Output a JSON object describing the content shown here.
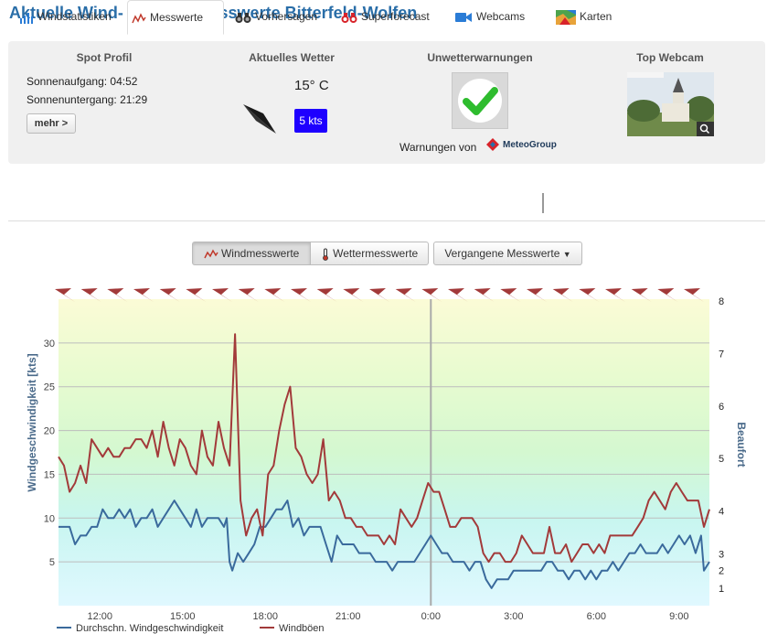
{
  "page": {
    "title": "Aktuelle Wind- & Wettermesswerte Bitterfeld-Wolfen"
  },
  "spot_profile": {
    "heading": "Spot Profil",
    "sunrise": "Sonnenaufgang: 04:52",
    "sunset": "Sonnenuntergang: 21:29",
    "more_label": "mehr >"
  },
  "current_weather": {
    "heading": "Aktuelles Wetter",
    "temperature": "15° C",
    "wind_speed": "5 kts",
    "wind_arrow_icon": "wind-direction-arrow-icon"
  },
  "warnings": {
    "heading": "Unwetterwarnungen",
    "status_icon": "checkmark-icon",
    "provider_text": "Warnungen von",
    "provider_name": "MeteoGroup"
  },
  "webcam": {
    "heading": "Top Webcam",
    "zoom_icon": "magnifier-icon"
  },
  "tabs": [
    {
      "label": "Windstatistiken",
      "icon": "bar-chart-icon"
    },
    {
      "label": "Messwerte",
      "icon": "line-chart-icon"
    },
    {
      "label": "Vorhersagen",
      "icon": "binoculars-icon"
    },
    {
      "label": "Superforecast",
      "icon": "superforecast-icon"
    },
    {
      "label": "Webcams",
      "icon": "camera-icon"
    },
    {
      "label": "Karten",
      "icon": "map-icon"
    }
  ],
  "buttons": {
    "wind": "Windmesswerte",
    "weather": "Wettermesswerte",
    "past": "Vergangene Messwerte"
  },
  "colors": {
    "avg": "#3a6a9c",
    "gust": "#a23a3a",
    "speed_badge": "#1e00ff",
    "title": "#2a6ea8",
    "arrow": "#a23a3a"
  },
  "chart_data": {
    "type": "line",
    "ylabel": "Windgeschwindigkeit [kts]",
    "y2label": "Beaufort",
    "ylim": [
      0,
      35
    ],
    "yticks": [
      5,
      10,
      15,
      20,
      25,
      30
    ],
    "beaufort_ticks": [
      {
        "label": "1",
        "kts": 2
      },
      {
        "label": "2",
        "kts": 4
      },
      {
        "label": "3",
        "kts": 5.9
      },
      {
        "label": "4",
        "kts": 10.8
      },
      {
        "label": "5",
        "kts": 16.8
      },
      {
        "label": "6",
        "kts": 22.8
      },
      {
        "label": "7",
        "kts": 28.8
      },
      {
        "label": "8",
        "kts": 34.8
      }
    ],
    "xlim": [
      10.5,
      34.1
    ],
    "xticks": [
      {
        "label": "12:00",
        "t": 12
      },
      {
        "label": "15:00",
        "t": 15
      },
      {
        "label": "18:00",
        "t": 18
      },
      {
        "label": "21:00",
        "t": 21
      },
      {
        "label": "0:00",
        "t": 24
      },
      {
        "label": "3:00",
        "t": 27
      },
      {
        "label": "6:00",
        "t": 30
      },
      {
        "label": "9:00",
        "t": 33
      }
    ],
    "midnight_line": 24,
    "direction_arrows_count": 25,
    "series": [
      {
        "name": "Durchschn. Windgeschwindigkeit",
        "color": "#3a6a9c",
        "points": [
          [
            10.5,
            9
          ],
          [
            10.7,
            9
          ],
          [
            10.9,
            9
          ],
          [
            11.1,
            7
          ],
          [
            11.3,
            8
          ],
          [
            11.5,
            8
          ],
          [
            11.7,
            9
          ],
          [
            11.9,
            9
          ],
          [
            12.1,
            11
          ],
          [
            12.3,
            10
          ],
          [
            12.5,
            10
          ],
          [
            12.7,
            11
          ],
          [
            12.9,
            10
          ],
          [
            13.1,
            11
          ],
          [
            13.3,
            9
          ],
          [
            13.5,
            10
          ],
          [
            13.7,
            10
          ],
          [
            13.9,
            11
          ],
          [
            14.1,
            9
          ],
          [
            14.3,
            10
          ],
          [
            14.5,
            11
          ],
          [
            14.7,
            12
          ],
          [
            14.9,
            11
          ],
          [
            15.1,
            10
          ],
          [
            15.3,
            9
          ],
          [
            15.5,
            11
          ],
          [
            15.7,
            9
          ],
          [
            15.9,
            10
          ],
          [
            16.1,
            10
          ],
          [
            16.3,
            10
          ],
          [
            16.5,
            9
          ],
          [
            16.6,
            10
          ],
          [
            16.7,
            5
          ],
          [
            16.8,
            4
          ],
          [
            17.0,
            6
          ],
          [
            17.2,
            5
          ],
          [
            17.4,
            6
          ],
          [
            17.6,
            7
          ],
          [
            17.8,
            9
          ],
          [
            18.0,
            9
          ],
          [
            18.2,
            10
          ],
          [
            18.4,
            11
          ],
          [
            18.6,
            11
          ],
          [
            18.8,
            12
          ],
          [
            19.0,
            9
          ],
          [
            19.2,
            10
          ],
          [
            19.4,
            8
          ],
          [
            19.6,
            9
          ],
          [
            19.8,
            9
          ],
          [
            20.0,
            9
          ],
          [
            20.2,
            7
          ],
          [
            20.4,
            5
          ],
          [
            20.6,
            8
          ],
          [
            20.8,
            7
          ],
          [
            21.0,
            7
          ],
          [
            21.2,
            7
          ],
          [
            21.4,
            6
          ],
          [
            21.6,
            6
          ],
          [
            21.8,
            6
          ],
          [
            22.0,
            5
          ],
          [
            22.2,
            5
          ],
          [
            22.4,
            5
          ],
          [
            22.6,
            4
          ],
          [
            22.8,
            5
          ],
          [
            23.0,
            5
          ],
          [
            23.2,
            5
          ],
          [
            23.4,
            5
          ],
          [
            23.6,
            6
          ],
          [
            23.8,
            7
          ],
          [
            24.0,
            8
          ],
          [
            24.2,
            7
          ],
          [
            24.4,
            6
          ],
          [
            24.6,
            6
          ],
          [
            24.8,
            5
          ],
          [
            25.0,
            5
          ],
          [
            25.2,
            5
          ],
          [
            25.4,
            4
          ],
          [
            25.6,
            5
          ],
          [
            25.8,
            5
          ],
          [
            26.0,
            3
          ],
          [
            26.2,
            2
          ],
          [
            26.4,
            3
          ],
          [
            26.6,
            3
          ],
          [
            26.8,
            3
          ],
          [
            27.0,
            4
          ],
          [
            27.2,
            4
          ],
          [
            27.4,
            4
          ],
          [
            27.6,
            4
          ],
          [
            27.8,
            4
          ],
          [
            28.0,
            4
          ],
          [
            28.2,
            5
          ],
          [
            28.4,
            5
          ],
          [
            28.6,
            4
          ],
          [
            28.8,
            4
          ],
          [
            29.0,
            3
          ],
          [
            29.2,
            4
          ],
          [
            29.4,
            4
          ],
          [
            29.6,
            3
          ],
          [
            29.8,
            4
          ],
          [
            30.0,
            3
          ],
          [
            30.2,
            4
          ],
          [
            30.4,
            4
          ],
          [
            30.6,
            5
          ],
          [
            30.8,
            4
          ],
          [
            31.0,
            5
          ],
          [
            31.2,
            6
          ],
          [
            31.4,
            6
          ],
          [
            31.6,
            7
          ],
          [
            31.8,
            6
          ],
          [
            32.0,
            6
          ],
          [
            32.2,
            6
          ],
          [
            32.4,
            7
          ],
          [
            32.6,
            6
          ],
          [
            32.8,
            7
          ],
          [
            33.0,
            8
          ],
          [
            33.2,
            7
          ],
          [
            33.4,
            8
          ],
          [
            33.6,
            6
          ],
          [
            33.8,
            8
          ],
          [
            33.9,
            4
          ],
          [
            34.1,
            5
          ]
        ]
      },
      {
        "name": "Windböen",
        "color": "#a23a3a",
        "points": [
          [
            10.5,
            17
          ],
          [
            10.7,
            16
          ],
          [
            10.9,
            13
          ],
          [
            11.1,
            14
          ],
          [
            11.3,
            16
          ],
          [
            11.5,
            14
          ],
          [
            11.7,
            19
          ],
          [
            11.9,
            18
          ],
          [
            12.1,
            17
          ],
          [
            12.3,
            18
          ],
          [
            12.5,
            17
          ],
          [
            12.7,
            17
          ],
          [
            12.9,
            18
          ],
          [
            13.1,
            18
          ],
          [
            13.3,
            19
          ],
          [
            13.5,
            19
          ],
          [
            13.7,
            18
          ],
          [
            13.9,
            20
          ],
          [
            14.1,
            17
          ],
          [
            14.3,
            21
          ],
          [
            14.5,
            18
          ],
          [
            14.7,
            16
          ],
          [
            14.9,
            19
          ],
          [
            15.1,
            18
          ],
          [
            15.3,
            16
          ],
          [
            15.5,
            15
          ],
          [
            15.7,
            20
          ],
          [
            15.9,
            17
          ],
          [
            16.1,
            16
          ],
          [
            16.3,
            21
          ],
          [
            16.5,
            18
          ],
          [
            16.7,
            16
          ],
          [
            16.9,
            31
          ],
          [
            17.1,
            12
          ],
          [
            17.3,
            8
          ],
          [
            17.5,
            10
          ],
          [
            17.7,
            11
          ],
          [
            17.9,
            8
          ],
          [
            18.1,
            15
          ],
          [
            18.3,
            16
          ],
          [
            18.5,
            20
          ],
          [
            18.7,
            23
          ],
          [
            18.9,
            25
          ],
          [
            19.1,
            18
          ],
          [
            19.3,
            17
          ],
          [
            19.5,
            15
          ],
          [
            19.7,
            14
          ],
          [
            19.9,
            15
          ],
          [
            20.1,
            19
          ],
          [
            20.3,
            12
          ],
          [
            20.5,
            13
          ],
          [
            20.7,
            12
          ],
          [
            20.9,
            10
          ],
          [
            21.1,
            10
          ],
          [
            21.3,
            9
          ],
          [
            21.5,
            9
          ],
          [
            21.7,
            8
          ],
          [
            21.9,
            8
          ],
          [
            22.1,
            8
          ],
          [
            22.3,
            7
          ],
          [
            22.5,
            8
          ],
          [
            22.7,
            7
          ],
          [
            22.9,
            11
          ],
          [
            23.1,
            10
          ],
          [
            23.3,
            9
          ],
          [
            23.5,
            10
          ],
          [
            23.7,
            12
          ],
          [
            23.9,
            14
          ],
          [
            24.1,
            13
          ],
          [
            24.3,
            13
          ],
          [
            24.5,
            11
          ],
          [
            24.7,
            9
          ],
          [
            24.9,
            9
          ],
          [
            25.1,
            10
          ],
          [
            25.3,
            10
          ],
          [
            25.5,
            10
          ],
          [
            25.7,
            9
          ],
          [
            25.9,
            6
          ],
          [
            26.1,
            5
          ],
          [
            26.3,
            6
          ],
          [
            26.5,
            6
          ],
          [
            26.7,
            5
          ],
          [
            26.9,
            5
          ],
          [
            27.1,
            6
          ],
          [
            27.3,
            8
          ],
          [
            27.5,
            7
          ],
          [
            27.7,
            6
          ],
          [
            27.9,
            6
          ],
          [
            28.1,
            6
          ],
          [
            28.3,
            9
          ],
          [
            28.5,
            6
          ],
          [
            28.7,
            6
          ],
          [
            28.9,
            7
          ],
          [
            29.1,
            5
          ],
          [
            29.3,
            6
          ],
          [
            29.5,
            7
          ],
          [
            29.7,
            7
          ],
          [
            29.9,
            6
          ],
          [
            30.1,
            7
          ],
          [
            30.3,
            6
          ],
          [
            30.5,
            8
          ],
          [
            30.7,
            8
          ],
          [
            30.9,
            8
          ],
          [
            31.1,
            8
          ],
          [
            31.3,
            8
          ],
          [
            31.5,
            9
          ],
          [
            31.7,
            10
          ],
          [
            31.9,
            12
          ],
          [
            32.1,
            13
          ],
          [
            32.3,
            12
          ],
          [
            32.5,
            11
          ],
          [
            32.7,
            13
          ],
          [
            32.9,
            14
          ],
          [
            33.1,
            13
          ],
          [
            33.3,
            12
          ],
          [
            33.5,
            12
          ],
          [
            33.7,
            12
          ],
          [
            33.9,
            9
          ],
          [
            34.1,
            11
          ]
        ]
      }
    ],
    "legend": [
      "Durchschn. Windgeschwindigkeit",
      "Windböen"
    ]
  }
}
